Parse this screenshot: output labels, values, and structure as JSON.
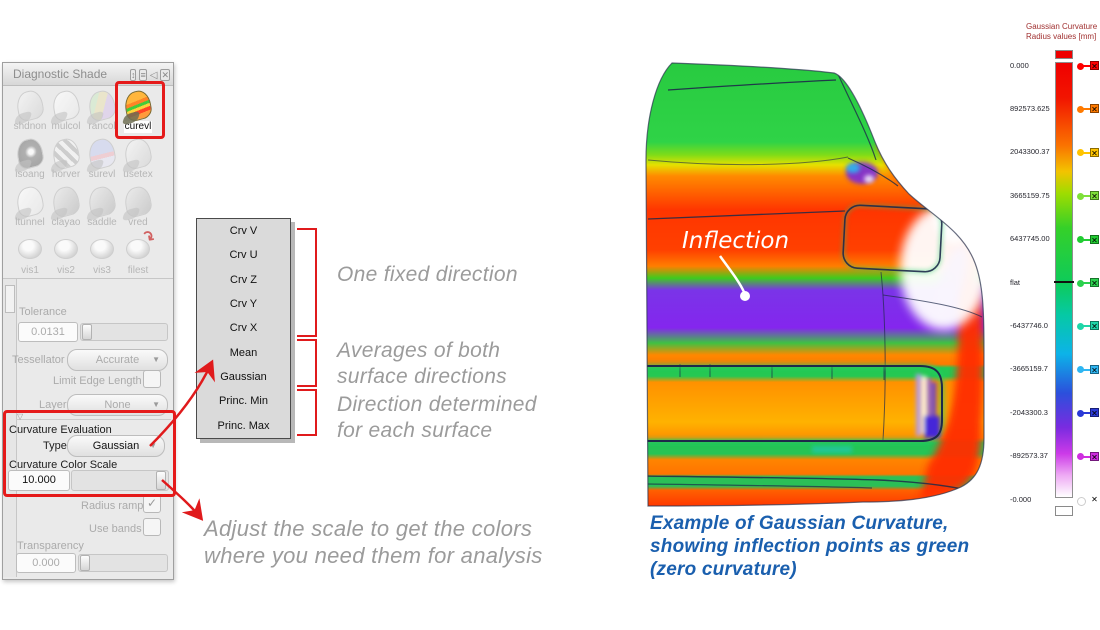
{
  "panel": {
    "title": "Diagnostic Shade",
    "header_icons": [
      {
        "name": "resize-vertical-icon",
        "glyph": "↕",
        "boxed": true
      },
      {
        "name": "menu-icon",
        "glyph": "≡",
        "boxed": true
      },
      {
        "name": "collapse-icon",
        "glyph": "◁",
        "boxed": false
      },
      {
        "name": "close-icon",
        "glyph": "✕",
        "boxed": true
      }
    ],
    "tools": [
      {
        "label": "shdnon",
        "style": "plain",
        "active": false
      },
      {
        "label": "mulcol",
        "style": "white",
        "active": false
      },
      {
        "label": "rancol",
        "style": "patches",
        "active": false
      },
      {
        "label": "curevl",
        "style": "curvature",
        "active": true
      },
      {
        "label": "isoang",
        "style": "darky",
        "active": false
      },
      {
        "label": "horver",
        "style": "zebra",
        "active": false
      },
      {
        "label": "surevl",
        "style": "blueband",
        "active": false
      },
      {
        "label": "usetex",
        "style": "plain",
        "active": false
      },
      {
        "label": "ltunnel",
        "style": "white",
        "active": false
      },
      {
        "label": "clayao",
        "style": "gray",
        "active": false
      },
      {
        "label": "saddle",
        "style": "gray",
        "active": false
      },
      {
        "label": "vred",
        "style": "gray",
        "active": false
      },
      {
        "label": "vis1",
        "style": "knob",
        "active": false
      },
      {
        "label": "vis2",
        "style": "knob",
        "active": false
      },
      {
        "label": "vis3",
        "style": "knob",
        "active": false
      },
      {
        "label": "filest",
        "style": "knob-arrow",
        "active": false
      }
    ],
    "fields": {
      "tolerance_label": "Tolerance",
      "tolerance_value": "0.0131",
      "tessellator_label": "Tessellator",
      "tessellator_value": "Accurate",
      "limit_edge_label": "Limit Edge Length",
      "layer_label": "Layer",
      "layer_value": "None",
      "curv_eval_label": "Curvature Evaluation",
      "type_label": "Type",
      "type_value": "Gaussian",
      "color_scale_label": "Curvature Color Scale",
      "color_scale_value": "10.000",
      "radius_ramp_label": "Radius ramp",
      "radius_ramp_check": "✓",
      "use_bands_label": "Use bands",
      "transparency_label": "Transparency",
      "transparency_value": "0.000"
    }
  },
  "menu": {
    "items": [
      "Crv V",
      "Crv U",
      "Crv Z",
      "Crv Y",
      "Crv X",
      "Mean",
      "Gaussian",
      "Princ. Min",
      "Princ. Max"
    ]
  },
  "callouts": {
    "accent_red": "#e51a1a",
    "text_gray": "#9b9b9b",
    "caption_blue": "#1a5fae",
    "one_fixed": "One fixed direction",
    "averages_1": "Averages of both",
    "averages_2": "surface directions",
    "direction_1": "Direction determined",
    "direction_2": "for each surface",
    "adjust_1": "Adjust the scale to get the colors",
    "adjust_2": "where you need them for analysis",
    "inflection": "Inflection",
    "caption_1": "Example of Gaussian Curvature,",
    "caption_2": "showing inflection points as green",
    "caption_3": "(zero curvature)"
  },
  "legend": {
    "title_1": "Gaussian Curvature",
    "title_2": "Radius values [mm]",
    "title_color": "#a03030",
    "top_swatch": "#ee0000",
    "bottom_swatch": "#ffffff",
    "bar_stops": [
      "#f00000 0%",
      "#f21500 8%",
      "#fa7300 19%",
      "#f3c300 25%",
      "#9fdc00 30%",
      "#35d029 38%",
      "#0ecb5a 50.7%",
      "#06c9a4 58%",
      "#0cb3e8 67%",
      "#2b50dc 76%",
      "#7a2be0 84%",
      "#cc3ae8 90%",
      "#eeaaf4 95%",
      "#ffffff 100%"
    ],
    "entries": [
      {
        "label": "0.000",
        "color": "#ff0000",
        "box": true
      },
      {
        "label": "892573.625",
        "color": "#ff7a00",
        "box": true
      },
      {
        "label": "2043300.37",
        "color": "#ffc400",
        "box": true
      },
      {
        "label": "3665159.75",
        "color": "#7fe03a",
        "box": true
      },
      {
        "label": "6437745.00",
        "color": "#22cc33",
        "box": true
      },
      {
        "label": "flat",
        "color": "#2bd14e",
        "box": true
      },
      {
        "label": "-6437746.0",
        "color": "#1fd6a8",
        "box": true
      },
      {
        "label": "-3665159.7",
        "color": "#2fb6f2",
        "box": true
      },
      {
        "label": "-2043300.3",
        "color": "#2b3ad6",
        "box": true
      },
      {
        "label": "-892573.37",
        "color": "#cf2ee0",
        "box": true
      },
      {
        "label": "-0.000",
        "color": "#ffffff",
        "box": false
      }
    ]
  },
  "car": {
    "gradient_stops": [
      {
        "o": 0.0,
        "c": "#27c93f"
      },
      {
        "o": 0.2,
        "c": "#2fd347"
      },
      {
        "o": 0.228,
        "c": "#7fdc18"
      },
      {
        "o": 0.25,
        "c": "#e6e000"
      },
      {
        "o": 0.274,
        "c": "#ff8a00"
      },
      {
        "o": 0.348,
        "c": "#ff3500"
      },
      {
        "o": 0.435,
        "c": "#ff4000"
      },
      {
        "o": 0.47,
        "c": "#ff7e00"
      },
      {
        "o": 0.496,
        "c": "#3ecb1e"
      },
      {
        "o": 0.522,
        "c": "#7a34e8"
      },
      {
        "o": 0.604,
        "c": "#8426ee"
      },
      {
        "o": 0.637,
        "c": "#3fc143"
      },
      {
        "o": 0.663,
        "c": "#ff8800"
      },
      {
        "o": 0.683,
        "c": "#ff7a00"
      },
      {
        "o": 0.691,
        "c": "#25c853"
      },
      {
        "o": 0.709,
        "c": "#25c853"
      },
      {
        "o": 0.722,
        "c": "#ff9100"
      },
      {
        "o": 0.809,
        "c": "#ffb200"
      },
      {
        "o": 0.843,
        "c": "#ff9100"
      },
      {
        "o": 0.854,
        "c": "#25c455"
      },
      {
        "o": 0.878,
        "c": "#25c455"
      },
      {
        "o": 0.891,
        "c": "#ff8400"
      },
      {
        "o": 0.922,
        "c": "#ff7400"
      },
      {
        "o": 0.928,
        "c": "#2bbf57"
      },
      {
        "o": 0.948,
        "c": "#2bbf57"
      },
      {
        "o": 0.957,
        "c": "#ff6000"
      },
      {
        "o": 1.0,
        "c": "#ff2e00"
      }
    ]
  }
}
